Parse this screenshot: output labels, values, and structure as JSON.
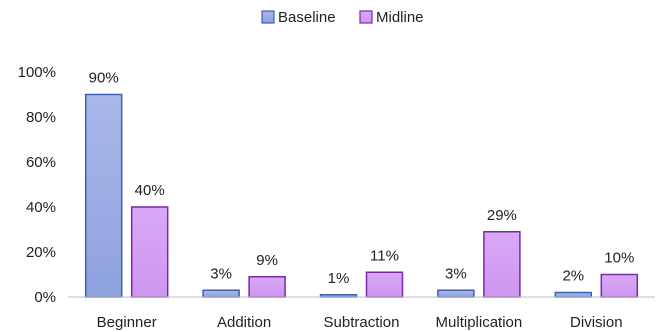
{
  "chart_data": {
    "type": "bar",
    "categories": [
      "Beginner",
      "Addition",
      "Subtraction",
      "Multiplication",
      "Division"
    ],
    "series": [
      {
        "name": "Baseline",
        "values": [
          90,
          3,
          1,
          3,
          2
        ],
        "labels": [
          "90%",
          "3%",
          "1%",
          "3%",
          "2%"
        ],
        "color": "#8ea2de",
        "stroke": "#3f5fb5"
      },
      {
        "name": "Midline",
        "values": [
          40,
          9,
          11,
          29,
          10
        ],
        "labels": [
          "40%",
          "9%",
          "11%",
          "29%",
          "10%"
        ],
        "color": "#cf96f0",
        "stroke": "#7a2aa8"
      }
    ],
    "ylim": [
      0,
      100
    ],
    "yticks": [
      0,
      20,
      40,
      60,
      80,
      100
    ],
    "ytick_labels": [
      "0%",
      "20%",
      "40%",
      "60%",
      "80%",
      "100%"
    ],
    "title": "",
    "xlabel": "",
    "ylabel": "",
    "legend": "top-center",
    "grid": false
  }
}
